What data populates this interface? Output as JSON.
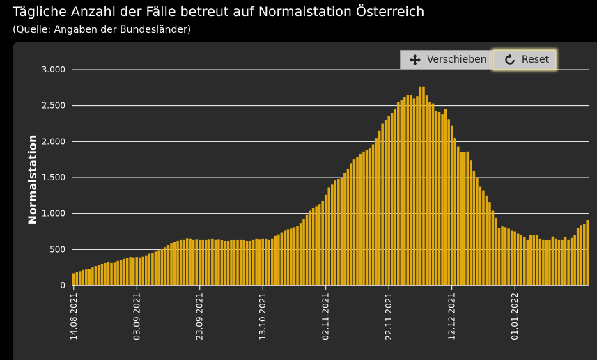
{
  "header": {
    "title": "Tägliche Anzahl der Fälle betreut auf Normalstation Österreich",
    "subtitle": "(Quelle: Angaben der Bundesländer)"
  },
  "toolbar": {
    "move_label": "Verschieben",
    "move_icon": "move-arrows-icon",
    "reset_label": "Reset",
    "reset_icon": "rotate-icon"
  },
  "colors": {
    "bar": "#e0a90f",
    "grid": "#ffffff",
    "panel": "#2b2b2b",
    "background": "#000000"
  },
  "chart_data": {
    "type": "bar",
    "ylabel": "Normalstation",
    "ylim": [
      0,
      3000
    ],
    "yticks": [
      0,
      500,
      1000,
      1500,
      2000,
      2500,
      3000
    ],
    "ytick_labels": [
      "0",
      "500",
      "1.000",
      "1.500",
      "2.000",
      "2.500",
      "3.000"
    ],
    "xtick_labels": [
      "14.08.2021",
      "03.09.2021",
      "23.09.2021",
      "13.10.2021",
      "02.11.2021",
      "22.11.2021",
      "12.12.2021",
      "01.01.2022"
    ],
    "xtick_every": 20,
    "grid": true,
    "legend": "none",
    "values": [
      170,
      185,
      200,
      215,
      225,
      230,
      250,
      270,
      285,
      300,
      320,
      330,
      320,
      325,
      340,
      350,
      370,
      385,
      395,
      390,
      395,
      390,
      400,
      420,
      440,
      455,
      470,
      490,
      510,
      530,
      560,
      590,
      610,
      620,
      640,
      640,
      655,
      650,
      640,
      645,
      640,
      630,
      640,
      645,
      650,
      640,
      645,
      630,
      620,
      620,
      630,
      640,
      635,
      640,
      630,
      620,
      620,
      640,
      650,
      645,
      650,
      650,
      640,
      650,
      690,
      710,
      740,
      760,
      780,
      790,
      810,
      830,
      870,
      920,
      980,
      1040,
      1080,
      1100,
      1130,
      1180,
      1260,
      1360,
      1410,
      1460,
      1480,
      1500,
      1560,
      1620,
      1700,
      1750,
      1790,
      1830,
      1860,
      1880,
      1910,
      1960,
      2050,
      2150,
      2250,
      2300,
      2360,
      2400,
      2450,
      2550,
      2580,
      2620,
      2650,
      2650,
      2600,
      2630,
      2760,
      2760,
      2640,
      2550,
      2530,
      2430,
      2410,
      2380,
      2450,
      2310,
      2220,
      2050,
      1930,
      1850,
      1850,
      1860,
      1740,
      1590,
      1490,
      1380,
      1320,
      1250,
      1160,
      1040,
      940,
      800,
      820,
      810,
      790,
      760,
      750,
      720,
      700,
      670,
      640,
      700,
      700,
      700,
      650,
      640,
      630,
      640,
      680,
      650,
      640,
      640,
      670,
      640,
      660,
      700,
      800,
      840,
      860,
      910
    ]
  }
}
